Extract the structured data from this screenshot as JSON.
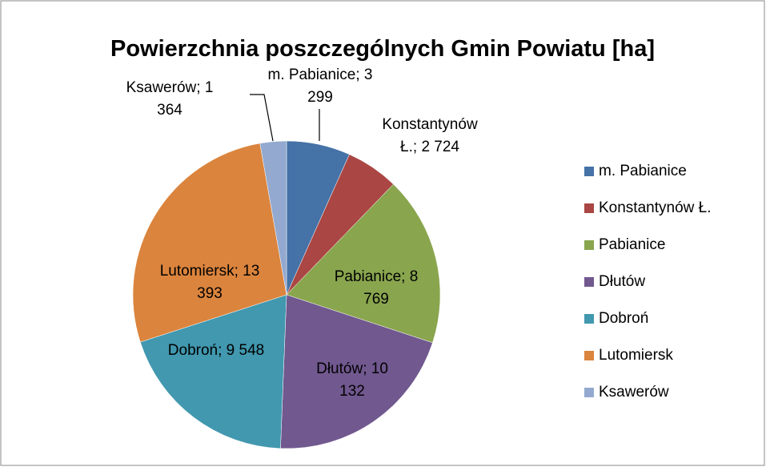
{
  "chart_data": {
    "type": "pie",
    "title": "Powierzchnia poszczególnych Gmin Powiatu [ha]",
    "categories": [
      "m. Pabianice",
      "Konstantynów Ł.",
      "Pabianice",
      "Dłutów",
      "Dobroń",
      "Lutomiersk",
      "Ksawerów"
    ],
    "values": [
      3299,
      2724,
      8769,
      10132,
      9548,
      13393,
      1364
    ],
    "value_labels": [
      "3 299",
      "2 724",
      "8 769",
      "10 132",
      "9 548",
      "13 393",
      "1 364"
    ],
    "colors": [
      "#4572A7",
      "#AA4643",
      "#89A54E",
      "#71588F",
      "#4198AF",
      "#DB843D",
      "#93A9CF"
    ],
    "legend": "right"
  }
}
